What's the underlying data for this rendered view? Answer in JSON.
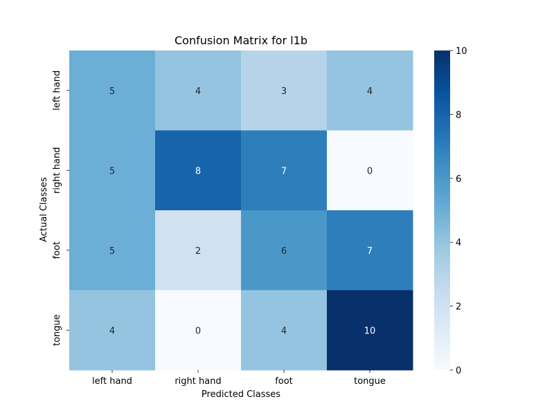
{
  "chart_data": {
    "type": "heatmap",
    "title": "Confusion Matrix for l1b",
    "xlabel": "Predicted Classes",
    "ylabel": "Actual Classes",
    "x_categories": [
      "left hand",
      "right hand",
      "foot",
      "tongue"
    ],
    "y_categories": [
      "left hand",
      "right hand",
      "foot",
      "tongue"
    ],
    "values": [
      [
        5,
        4,
        3,
        4
      ],
      [
        5,
        8,
        7,
        0
      ],
      [
        5,
        2,
        6,
        7
      ],
      [
        4,
        0,
        4,
        10
      ]
    ],
    "value_range": [
      0,
      10
    ],
    "colormap": "Blues",
    "colorbar_ticks": [
      "0",
      "2",
      "4",
      "6",
      "8",
      "10"
    ],
    "annotation_text_colors": {
      "light": "#ffffff",
      "dark": "#262626"
    }
  }
}
